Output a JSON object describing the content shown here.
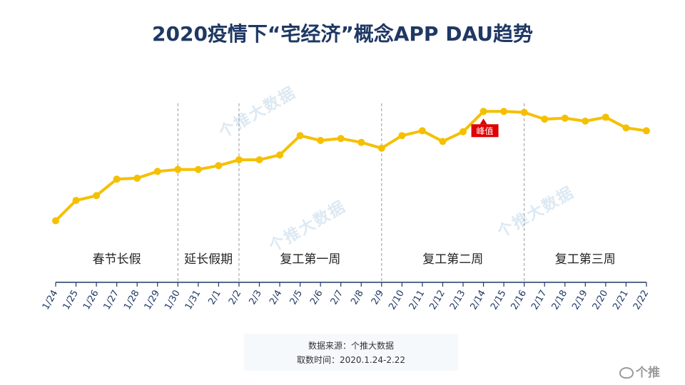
{
  "chart_data": {
    "type": "line",
    "title": "2020疫情下“宅经济”概念APP DAU趋势",
    "x": [
      "1/24",
      "1/25",
      "1/26",
      "1/27",
      "1/28",
      "1/29",
      "1/30",
      "1/31",
      "2/1",
      "2/2",
      "2/3",
      "2/4",
      "2/5",
      "2/6",
      "2/7",
      "2/8",
      "2/9",
      "2/10",
      "2/11",
      "2/12",
      "2/13",
      "2/14",
      "2/15",
      "2/16",
      "2/17",
      "2/18",
      "2/19",
      "2/20",
      "2/21",
      "2/22"
    ],
    "series": [
      {
        "values": [
          15,
          36,
          41,
          58,
          59,
          66,
          68,
          68,
          72,
          78,
          78,
          83,
          103,
          98,
          100,
          96,
          90,
          103,
          108,
          97,
          107,
          128,
          128,
          127,
          120,
          121,
          118,
          122,
          111,
          108
        ],
        "color": "#f5c000"
      }
    ],
    "ylim": [
      0,
      140
    ],
    "grid": false,
    "phases": [
      {
        "label": "春节长假",
        "start": "1/24",
        "end": "1/30"
      },
      {
        "label": "延长假期",
        "start": "1/30",
        "end": "2/2"
      },
      {
        "label": "复工第一周",
        "start": "2/2",
        "end": "2/9"
      },
      {
        "label": "复工第二周",
        "start": "2/9",
        "end": "2/16"
      },
      {
        "label": "复工第三周",
        "start": "2/16",
        "end": "2/22"
      }
    ],
    "annotation": {
      "label": "峰值",
      "at": "2/14",
      "color": "#e00000"
    }
  },
  "source": {
    "line1": "数据来源：个推大数据",
    "line2": "取数时间：2020.1.24-2.22"
  },
  "watermark": {
    "brand": "个推",
    "text": "个推大数据"
  }
}
